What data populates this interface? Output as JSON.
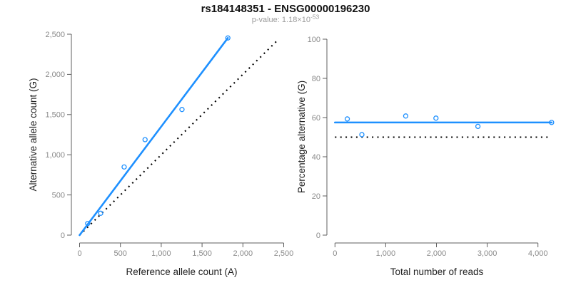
{
  "title": "rs184148351 - ENSG00000196230",
  "subtitle": {
    "text": "p-value: 1.18×10",
    "exponent": "-53"
  },
  "colors": {
    "accent_blue": "#1E90FF",
    "reference_line_black": "#000000",
    "axis_gray": "#5f5f5f",
    "tick_label_gray": "#8a8a8a",
    "title_black": "#111111",
    "subtitle_gray": "#9b9b9b"
  },
  "chart_data": [
    {
      "type": "scatter",
      "name": "allele-counts-plot",
      "xlabel": "Reference allele count (A)",
      "ylabel": "Alternative allele count (G)",
      "xlim": [
        0,
        2500
      ],
      "ylim": [
        0,
        2500
      ],
      "grid": false,
      "legend": null,
      "xticks": {
        "values": [
          0,
          500,
          1000,
          1500,
          2000,
          2500
        ],
        "labels": [
          "0",
          "500",
          "1,000",
          "1,500",
          "2,000",
          "2,500"
        ]
      },
      "yticks": {
        "values": [
          0,
          500,
          1000,
          1500,
          2000,
          2500
        ],
        "labels": [
          "0",
          "500",
          "1,000",
          "1,500",
          "2,000",
          "2,500"
        ]
      },
      "points": [
        {
          "x": 99,
          "y": 144
        },
        {
          "x": 258,
          "y": 272
        },
        {
          "x": 546,
          "y": 848
        },
        {
          "x": 802,
          "y": 1188
        },
        {
          "x": 1254,
          "y": 1563
        },
        {
          "x": 1816,
          "y": 2453
        }
      ],
      "fit_line": {
        "style": "solid",
        "from": {
          "x": 0,
          "y": 0
        },
        "to": {
          "x": 1816,
          "y": 2453
        }
      },
      "reference_line": {
        "style": "dotted",
        "from": {
          "x": 0,
          "y": 0
        },
        "to": {
          "x": 2430,
          "y": 2430
        }
      }
    },
    {
      "type": "scatter",
      "name": "percentage-vs-reads-plot",
      "xlabel": "Total number of reads",
      "ylabel": "Percentage alternative (G)",
      "xlim": [
        0,
        4300
      ],
      "ylim": [
        0,
        100
      ],
      "grid": false,
      "legend": null,
      "xticks": {
        "values": [
          0,
          1000,
          2000,
          3000,
          4000
        ],
        "labels": [
          "0",
          "1,000",
          "2,000",
          "3,000",
          "4,000"
        ]
      },
      "yticks": {
        "values": [
          0,
          20,
          40,
          60,
          80,
          100
        ],
        "labels": [
          "0",
          "20",
          "40",
          "60",
          "80",
          "100"
        ]
      },
      "points": [
        {
          "x": 243,
          "y": 59.3
        },
        {
          "x": 530,
          "y": 51.3
        },
        {
          "x": 1394,
          "y": 60.8
        },
        {
          "x": 1990,
          "y": 59.7
        },
        {
          "x": 2817,
          "y": 55.5
        },
        {
          "x": 4269,
          "y": 57.5
        }
      ],
      "fit_line": {
        "style": "solid",
        "from": {
          "x": 0,
          "y": 57.5
        },
        "to": {
          "x": 4269,
          "y": 57.5
        }
      },
      "reference_line": {
        "style": "dotted",
        "from": {
          "x": 0,
          "y": 50
        },
        "to": {
          "x": 4220,
          "y": 50
        }
      }
    }
  ]
}
